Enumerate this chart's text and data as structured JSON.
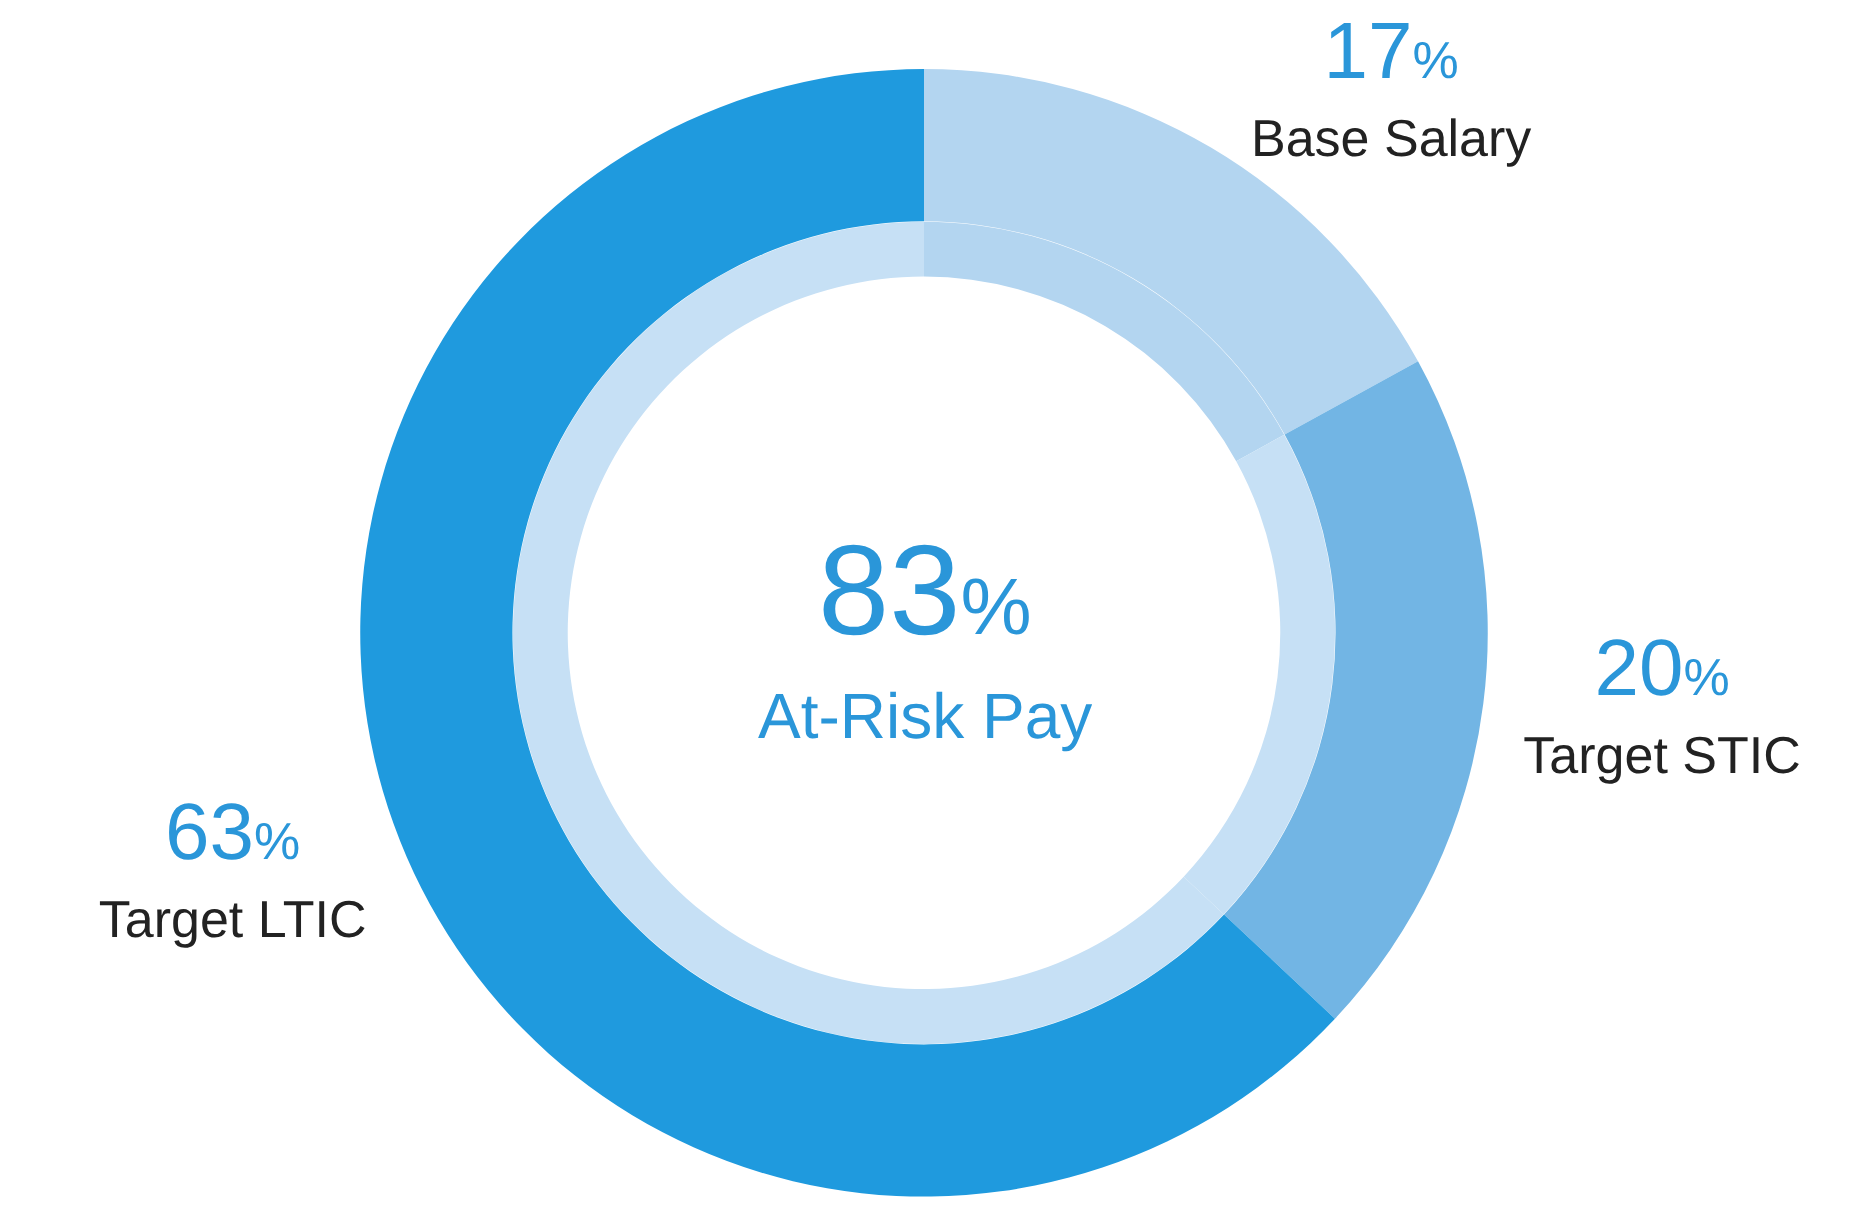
{
  "chart_data": {
    "type": "donut",
    "categories": [
      "Base Salary",
      "Target STIC",
      "Target LTIC"
    ],
    "value_labels": [
      "17%",
      "20%",
      "63%"
    ],
    "series": [
      {
        "values": [
          17,
          20,
          63
        ],
        "colors": [
          "#b3d5f0",
          "#72b5e4",
          "#1f9ade"
        ]
      },
      {
        "values": [
          17,
          20,
          63
        ],
        "colors": [
          "#b3d5f0",
          "#c6e0f5",
          "#c6e0f5"
        ]
      }
    ],
    "annotations": [
      "83%",
      "At-Risk Pay"
    ]
  }
}
